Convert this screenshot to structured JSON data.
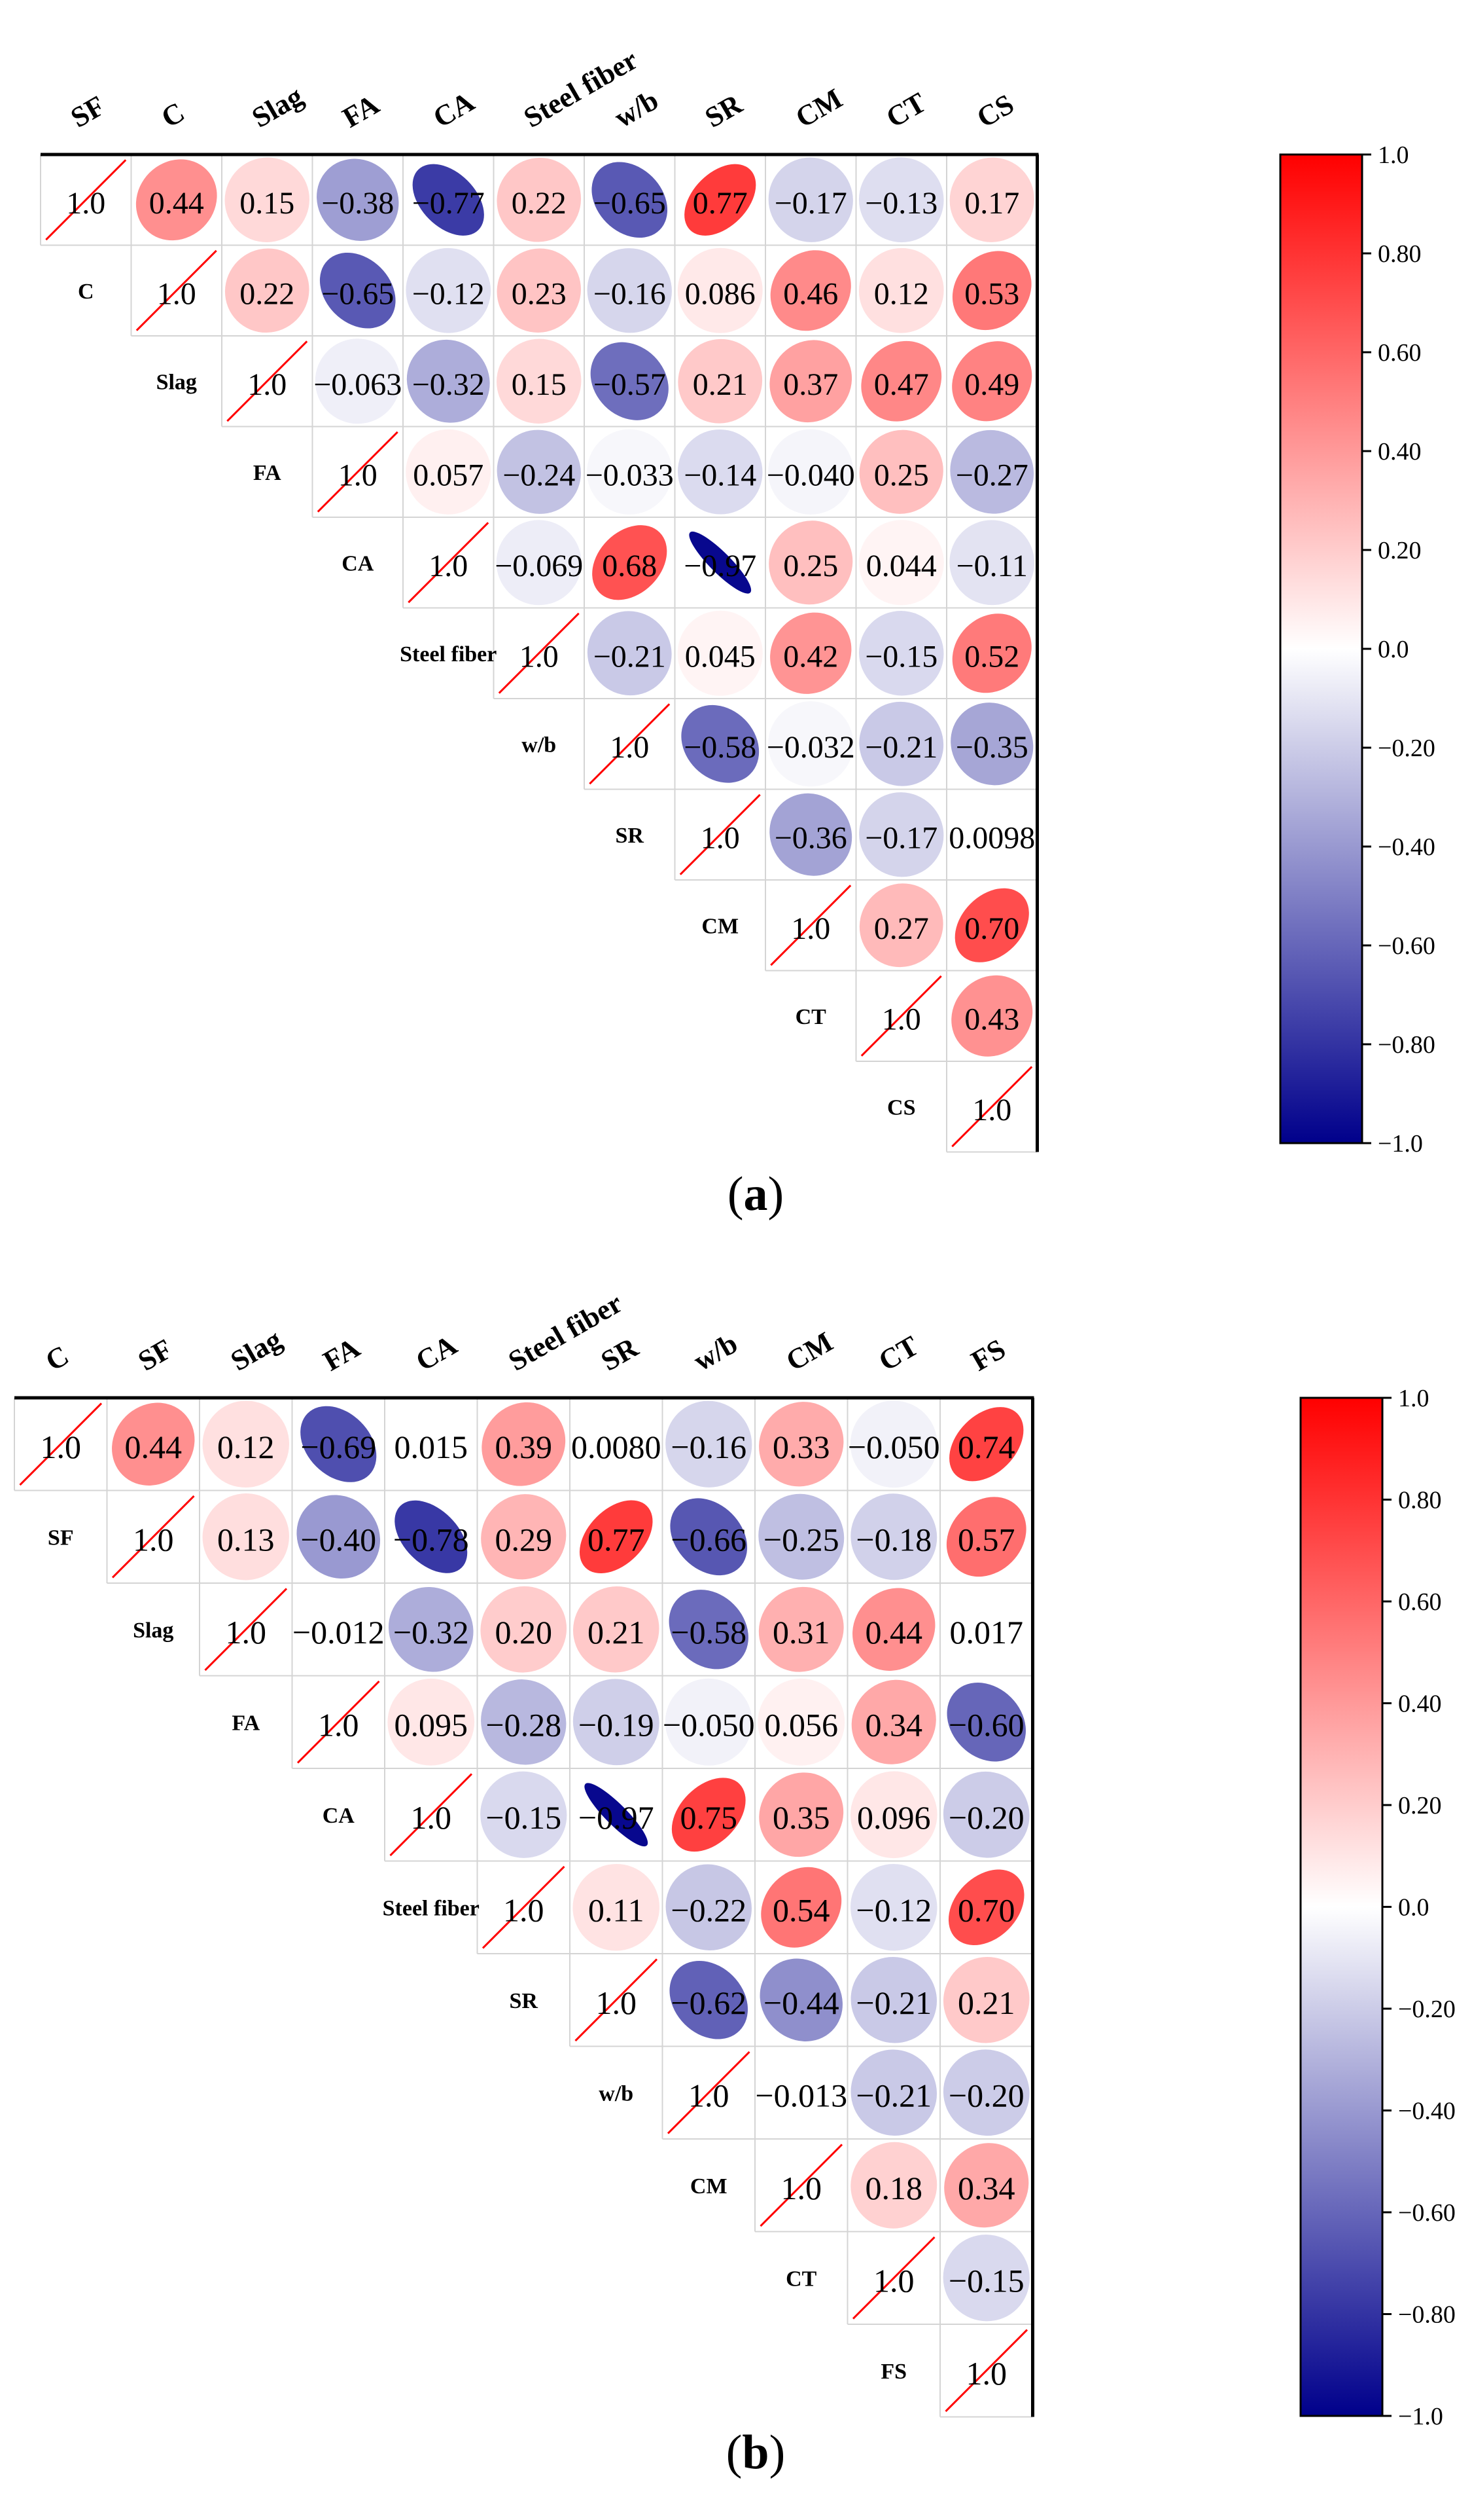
{
  "chart_data": [
    {
      "type": "heatmap",
      "title": "",
      "caption": "(a)",
      "caption_letter": "a",
      "variables": [
        "SF",
        "C",
        "Slag",
        "FA",
        "CA",
        "Steel fiber",
        "w/b",
        "SR",
        "CM",
        "CT",
        "CS"
      ],
      "matrix": [
        [
          "1.0",
          "0.44",
          "0.15",
          "-0.38",
          "-0.77",
          "0.22",
          "-0.65",
          "0.77",
          "-0.17",
          "-0.13",
          "0.17"
        ],
        [
          null,
          "1.0",
          "0.22",
          "-0.65",
          "-0.12",
          "0.23",
          "-0.16",
          "0.086",
          "0.46",
          "0.12",
          "0.53"
        ],
        [
          null,
          null,
          "1.0",
          "-0.063",
          "-0.32",
          "0.15",
          "-0.57",
          "0.21",
          "0.37",
          "0.47",
          "0.49"
        ],
        [
          null,
          null,
          null,
          "1.0",
          "0.057",
          "-0.24",
          "-0.033",
          "-0.14",
          "-0.040",
          "0.25",
          "-0.27"
        ],
        [
          null,
          null,
          null,
          null,
          "1.0",
          "-0.069",
          "0.68",
          "-0.97",
          "0.25",
          "0.044",
          "-0.11"
        ],
        [
          null,
          null,
          null,
          null,
          null,
          "1.0",
          "-0.21",
          "0.045",
          "0.42",
          "-0.15",
          "0.52"
        ],
        [
          null,
          null,
          null,
          null,
          null,
          null,
          "1.0",
          "-0.58",
          "-0.032",
          "-0.21",
          "-0.35"
        ],
        [
          null,
          null,
          null,
          null,
          null,
          null,
          null,
          "1.0",
          "-0.36",
          "-0.17",
          "0.0098"
        ],
        [
          null,
          null,
          null,
          null,
          null,
          null,
          null,
          null,
          "1.0",
          "0.27",
          "0.70"
        ],
        [
          null,
          null,
          null,
          null,
          null,
          null,
          null,
          null,
          null,
          "1.0",
          "0.43"
        ],
        [
          null,
          null,
          null,
          null,
          null,
          null,
          null,
          null,
          null,
          null,
          "1.0"
        ]
      ],
      "colorbar": {
        "range": [
          -1.0,
          1.0
        ],
        "ticks": [
          1.0,
          0.8,
          0.6,
          0.4,
          0.2,
          0.0,
          -0.2,
          -0.4,
          -0.6,
          -0.8,
          -1.0
        ],
        "tick_labels": [
          "1.0",
          "0.80",
          "0.60",
          "0.40",
          "0.20",
          "0.0",
          "−0.20",
          "−0.40",
          "−0.60",
          "−0.80",
          "−1.0"
        ],
        "colors": {
          "positive": "#ff0000",
          "neutral": "#ffffff",
          "negative": "#00008b"
        }
      }
    },
    {
      "type": "heatmap",
      "title": "",
      "caption": "(b)",
      "caption_letter": "b",
      "variables": [
        "C",
        "SF",
        "Slag",
        "FA",
        "CA",
        "Steel fiber",
        "SR",
        "w/b",
        "CM",
        "CT",
        "FS"
      ],
      "matrix": [
        [
          "1.0",
          "0.44",
          "0.12",
          "-0.69",
          "0.015",
          "0.39",
          "0.0080",
          "-0.16",
          "0.33",
          "-0.050",
          "0.74"
        ],
        [
          null,
          "1.0",
          "0.13",
          "-0.40",
          "-0.78",
          "0.29",
          "0.77",
          "-0.66",
          "-0.25",
          "-0.18",
          "0.57"
        ],
        [
          null,
          null,
          "1.0",
          "-0.012",
          "-0.32",
          "0.20",
          "0.21",
          "-0.58",
          "0.31",
          "0.44",
          "0.017"
        ],
        [
          null,
          null,
          null,
          "1.0",
          "0.095",
          "-0.28",
          "-0.19",
          "-0.050",
          "0.056",
          "0.34",
          "-0.60"
        ],
        [
          null,
          null,
          null,
          null,
          "1.0",
          "-0.15",
          "-0.97",
          "0.75",
          "0.35",
          "0.096",
          "-0.20"
        ],
        [
          null,
          null,
          null,
          null,
          null,
          "1.0",
          "0.11",
          "-0.22",
          "0.54",
          "-0.12",
          "0.70"
        ],
        [
          null,
          null,
          null,
          null,
          null,
          null,
          "1.0",
          "-0.62",
          "-0.44",
          "-0.21",
          "0.21"
        ],
        [
          null,
          null,
          null,
          null,
          null,
          null,
          null,
          "1.0",
          "-0.013",
          "-0.21",
          "-0.20"
        ],
        [
          null,
          null,
          null,
          null,
          null,
          null,
          null,
          null,
          "1.0",
          "0.18",
          "0.34"
        ],
        [
          null,
          null,
          null,
          null,
          null,
          null,
          null,
          null,
          null,
          "1.0",
          "-0.15"
        ],
        [
          null,
          null,
          null,
          null,
          null,
          null,
          null,
          null,
          null,
          null,
          "1.0"
        ]
      ],
      "colorbar": {
        "range": [
          -1.0,
          1.0
        ],
        "ticks": [
          1.0,
          0.8,
          0.6,
          0.4,
          0.2,
          0.0,
          -0.2,
          -0.4,
          -0.6,
          -0.8,
          -1.0
        ],
        "tick_labels": [
          "1.0",
          "0.80",
          "0.60",
          "0.40",
          "0.20",
          "0.0",
          "−0.20",
          "−0.40",
          "−0.60",
          "−0.80",
          "−1.0"
        ],
        "colors": {
          "positive": "#ff0000",
          "neutral": "#ffffff",
          "negative": "#00008b"
        }
      }
    }
  ]
}
